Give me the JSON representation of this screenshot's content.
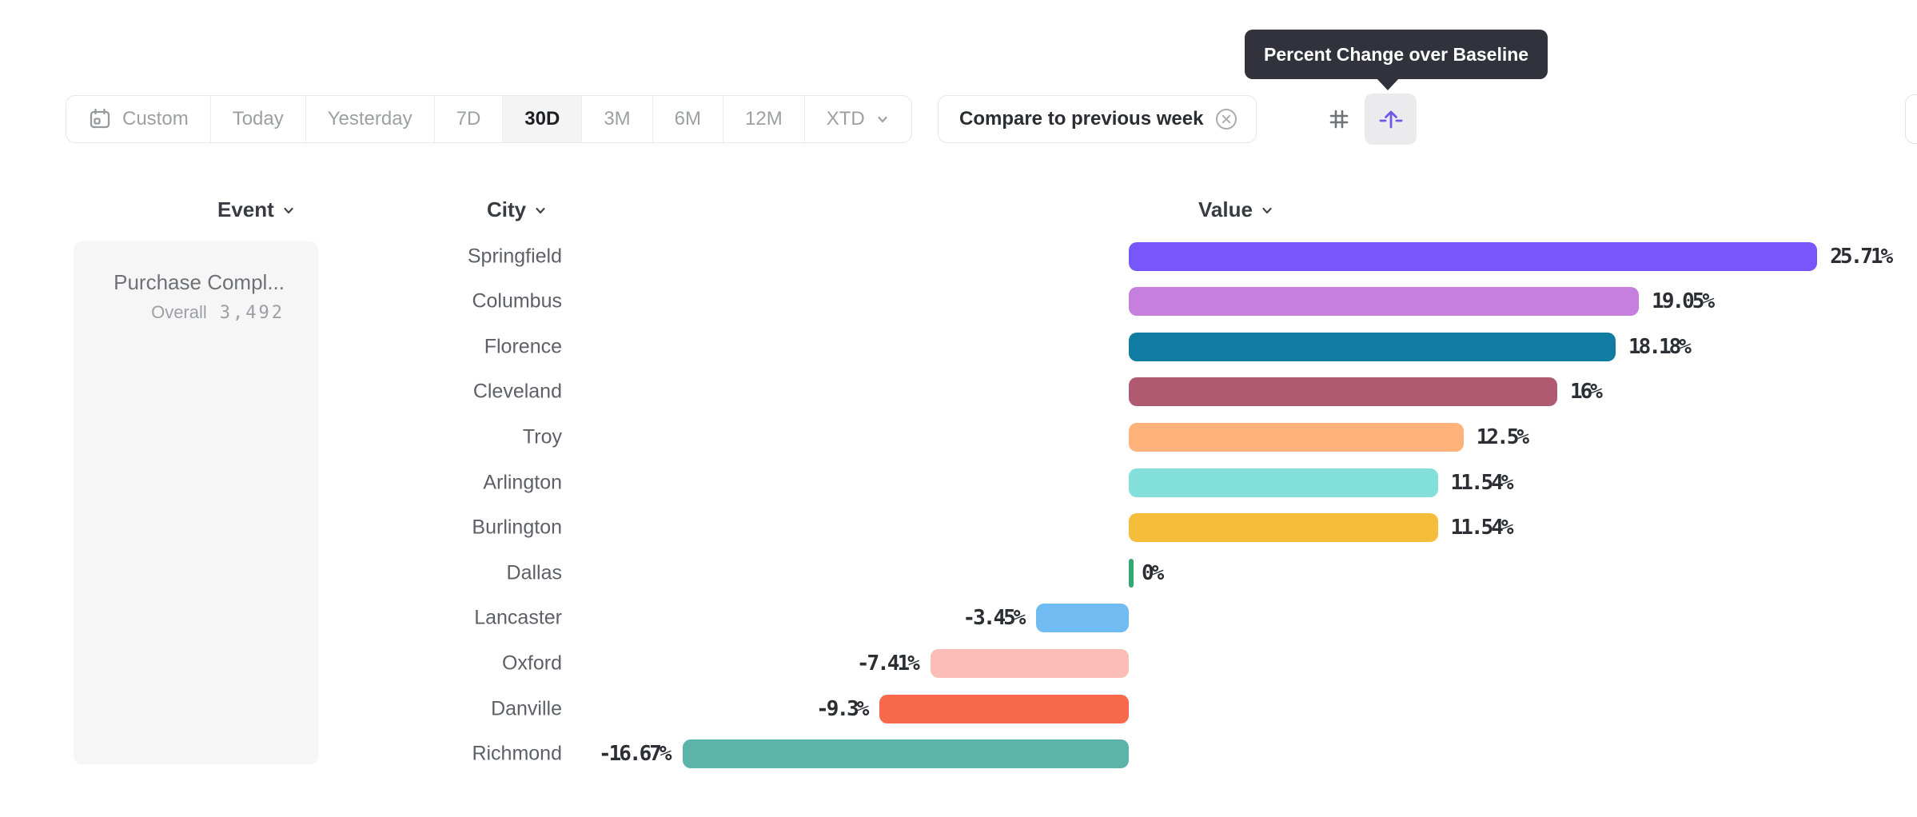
{
  "tooltip": {
    "text": "Percent Change over Baseline"
  },
  "toolbar": {
    "date_ranges": [
      {
        "label": "Custom",
        "icon": "calendar-icon"
      },
      {
        "label": "Today"
      },
      {
        "label": "Yesterday"
      },
      {
        "label": "7D"
      },
      {
        "label": "30D"
      },
      {
        "label": "3M"
      },
      {
        "label": "6M"
      },
      {
        "label": "12M"
      },
      {
        "label": "XTD",
        "chevron": true
      }
    ],
    "active_range": "30D",
    "compare_chip": {
      "label": "Compare to previous week"
    },
    "view_toggles": [
      {
        "name": "numbers",
        "icon": "hash-icon",
        "active": false
      },
      {
        "name": "percent-change-baseline",
        "icon": "baseline-arrow-icon",
        "active": true
      }
    ]
  },
  "columns": {
    "event": "Event",
    "city": "City",
    "value": "Value"
  },
  "event_card": {
    "title": "Purchase Compl...",
    "overall_label": "Overall",
    "overall_value": "3,492"
  },
  "chart_data": {
    "type": "bar",
    "orientation": "horizontal",
    "title": "Percent Change over Baseline",
    "xlabel": "Value",
    "ylabel": "City",
    "unit": "%",
    "xlim": [
      -16.67,
      25.71
    ],
    "grid": false,
    "categories": [
      "Springfield",
      "Columbus",
      "Florence",
      "Cleveland",
      "Troy",
      "Arlington",
      "Burlington",
      "Dallas",
      "Lancaster",
      "Oxford",
      "Danville",
      "Richmond"
    ],
    "values": [
      25.71,
      19.05,
      18.18,
      16,
      12.5,
      11.54,
      11.54,
      0,
      -3.45,
      -7.41,
      -9.3,
      -16.67
    ],
    "labels": [
      "25.71%",
      "19.05%",
      "18.18%",
      "16%",
      "12.5%",
      "11.54%",
      "11.54%",
      "0%",
      "-3.45%",
      "-7.41%",
      "-9.3%",
      "-16.67%"
    ],
    "colors": [
      "#7857fa",
      "#c77fdd",
      "#107ca1",
      "#b05a72",
      "#ffb27a",
      "#82dfd9",
      "#f6bd3a",
      "#34a873",
      "#70bbf1",
      "#fbbdb5",
      "#f8684a",
      "#5cb3a9"
    ],
    "zero_line_color": "#34a873"
  }
}
